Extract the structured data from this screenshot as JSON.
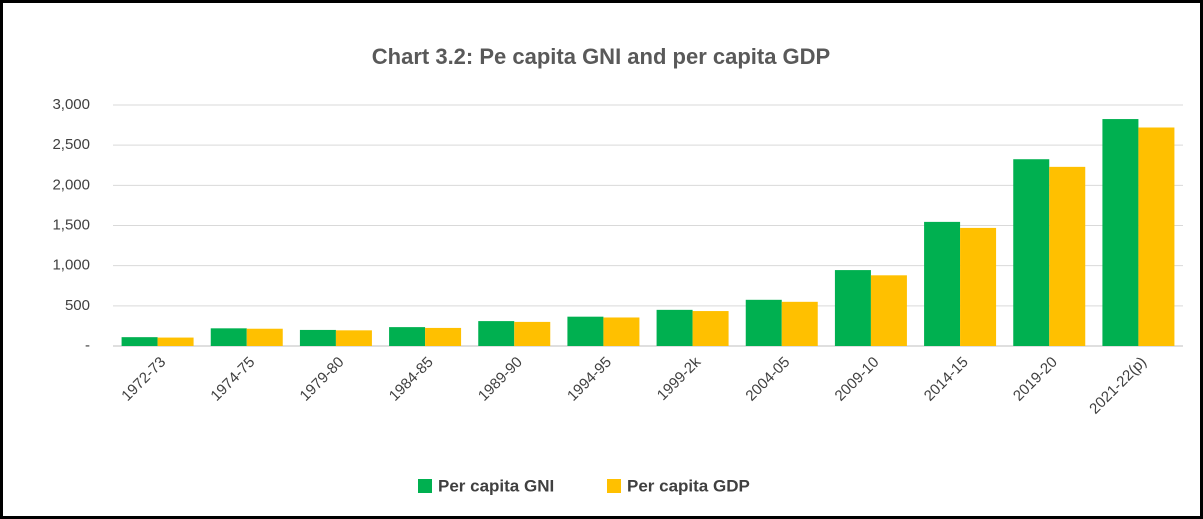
{
  "chart_data": {
    "type": "bar",
    "title": "Chart 3.2: Pe capita GNI and per capita GDP",
    "categories": [
      "1972-73",
      "1974-75",
      "1979-80",
      "1984-85",
      "1989-90",
      "1994-95",
      "1999-2k",
      "2004-05",
      "2009-10",
      "2014-15",
      "2019-20",
      "2021-22(p)"
    ],
    "series": [
      {
        "name": "Per capita GNI",
        "color": "#00b050",
        "values": [
          110,
          220,
          200,
          235,
          310,
          365,
          450,
          575,
          945,
          1545,
          2325,
          2825
        ]
      },
      {
        "name": "Per capita GDP",
        "color": "#ffc000",
        "values": [
          105,
          215,
          195,
          225,
          300,
          355,
          435,
          550,
          880,
          1470,
          2230,
          2720
        ]
      }
    ],
    "ylim": [
      0,
      3000
    ],
    "yticks": [
      {
        "value": 0,
        "label": "-"
      },
      500,
      {
        "value": 1000,
        "label": "1,000"
      },
      {
        "value": 1500,
        "label": "1,500"
      },
      {
        "value": 2000,
        "label": "2,000"
      },
      {
        "value": 2500,
        "label": "2,500"
      },
      {
        "value": 3000,
        "label": "3,000"
      }
    ],
    "grid": true,
    "legend": "bottom"
  }
}
